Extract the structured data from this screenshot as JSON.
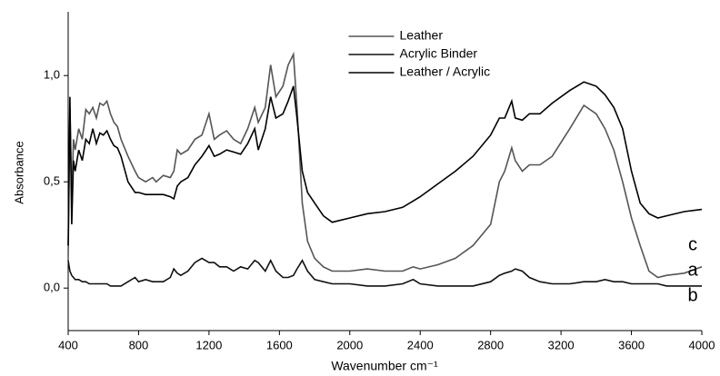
{
  "chart_data": {
    "type": "line",
    "xlabel": "Wavenumber cm⁻¹",
    "ylabel": "Absorbance",
    "x": [
      400,
      410,
      420,
      430,
      440,
      460,
      480,
      500,
      520,
      540,
      560,
      580,
      600,
      620,
      640,
      660,
      680,
      700,
      740,
      780,
      800,
      840,
      880,
      900,
      940,
      980,
      1000,
      1020,
      1040,
      1080,
      1120,
      1160,
      1200,
      1230,
      1260,
      1300,
      1340,
      1380,
      1420,
      1460,
      1480,
      1520,
      1550,
      1580,
      1620,
      1650,
      1680,
      1700,
      1730,
      1760,
      1800,
      1850,
      1900,
      2000,
      2100,
      2200,
      2300,
      2360,
      2400,
      2500,
      2600,
      2700,
      2800,
      2850,
      2880,
      2920,
      2940,
      2980,
      3020,
      3080,
      3150,
      3250,
      3330,
      3400,
      3450,
      3500,
      3550,
      3600,
      3650,
      3700,
      3750,
      3800,
      3900,
      4000
    ],
    "series": [
      {
        "name": "Leather",
        "color": "#555555",
        "values": [
          0.15,
          0.85,
          0.4,
          0.7,
          0.65,
          0.75,
          0.7,
          0.84,
          0.82,
          0.85,
          0.8,
          0.87,
          0.86,
          0.88,
          0.82,
          0.78,
          0.76,
          0.7,
          0.62,
          0.55,
          0.52,
          0.5,
          0.52,
          0.5,
          0.53,
          0.52,
          0.55,
          0.65,
          0.63,
          0.65,
          0.7,
          0.72,
          0.82,
          0.7,
          0.72,
          0.74,
          0.7,
          0.68,
          0.75,
          0.85,
          0.78,
          0.85,
          1.05,
          0.9,
          0.95,
          1.05,
          1.1,
          0.85,
          0.4,
          0.22,
          0.14,
          0.1,
          0.08,
          0.08,
          0.09,
          0.08,
          0.08,
          0.1,
          0.09,
          0.11,
          0.14,
          0.2,
          0.3,
          0.5,
          0.55,
          0.66,
          0.6,
          0.55,
          0.58,
          0.58,
          0.62,
          0.75,
          0.86,
          0.82,
          0.75,
          0.65,
          0.5,
          0.33,
          0.2,
          0.08,
          0.05,
          0.06,
          0.07,
          0.1
        ]
      },
      {
        "name": "Acrylic Binder",
        "color": "#111111",
        "values": [
          0.13,
          0.08,
          0.06,
          0.05,
          0.04,
          0.04,
          0.03,
          0.03,
          0.02,
          0.02,
          0.02,
          0.02,
          0.02,
          0.02,
          0.01,
          0.01,
          0.01,
          0.01,
          0.03,
          0.05,
          0.03,
          0.04,
          0.03,
          0.03,
          0.03,
          0.05,
          0.09,
          0.07,
          0.06,
          0.08,
          0.12,
          0.14,
          0.12,
          0.12,
          0.1,
          0.1,
          0.08,
          0.1,
          0.09,
          0.13,
          0.12,
          0.08,
          0.13,
          0.08,
          0.05,
          0.05,
          0.06,
          0.09,
          0.13,
          0.08,
          0.04,
          0.03,
          0.02,
          0.02,
          0.01,
          0.01,
          0.02,
          0.04,
          0.02,
          0.01,
          0.01,
          0.01,
          0.03,
          0.06,
          0.07,
          0.08,
          0.09,
          0.08,
          0.05,
          0.03,
          0.02,
          0.02,
          0.03,
          0.03,
          0.04,
          0.03,
          0.03,
          0.02,
          0.02,
          0.02,
          0.02,
          0.01,
          0.01,
          0.01
        ]
      },
      {
        "name": "Leather / Acrylic",
        "color": "#000000",
        "values": [
          0.2,
          0.9,
          0.3,
          0.6,
          0.55,
          0.65,
          0.6,
          0.7,
          0.68,
          0.75,
          0.68,
          0.73,
          0.72,
          0.74,
          0.7,
          0.67,
          0.66,
          0.62,
          0.5,
          0.45,
          0.45,
          0.44,
          0.44,
          0.44,
          0.44,
          0.43,
          0.42,
          0.48,
          0.5,
          0.52,
          0.58,
          0.62,
          0.67,
          0.62,
          0.63,
          0.65,
          0.64,
          0.63,
          0.68,
          0.75,
          0.65,
          0.75,
          0.9,
          0.8,
          0.82,
          0.88,
          0.95,
          0.8,
          0.55,
          0.45,
          0.4,
          0.34,
          0.31,
          0.33,
          0.35,
          0.36,
          0.38,
          0.41,
          0.43,
          0.49,
          0.55,
          0.62,
          0.72,
          0.8,
          0.8,
          0.88,
          0.8,
          0.79,
          0.82,
          0.82,
          0.87,
          0.93,
          0.97,
          0.95,
          0.91,
          0.85,
          0.75,
          0.55,
          0.4,
          0.35,
          0.33,
          0.34,
          0.36,
          0.37
        ]
      }
    ],
    "annotations": [
      "c",
      "a",
      "b"
    ],
    "xlim": [
      400,
      4000
    ],
    "xticks": [
      400,
      800,
      1200,
      1600,
      2000,
      2400,
      2800,
      3200,
      3600,
      4000
    ],
    "ylim": [
      -0.2,
      1.3
    ],
    "yticks": [
      {
        "value": 0,
        "label": "0,0"
      },
      {
        "value": 0.5,
        "label": "0,5"
      },
      {
        "value": 1,
        "label": "1,0"
      }
    ],
    "legend": "upper center"
  }
}
